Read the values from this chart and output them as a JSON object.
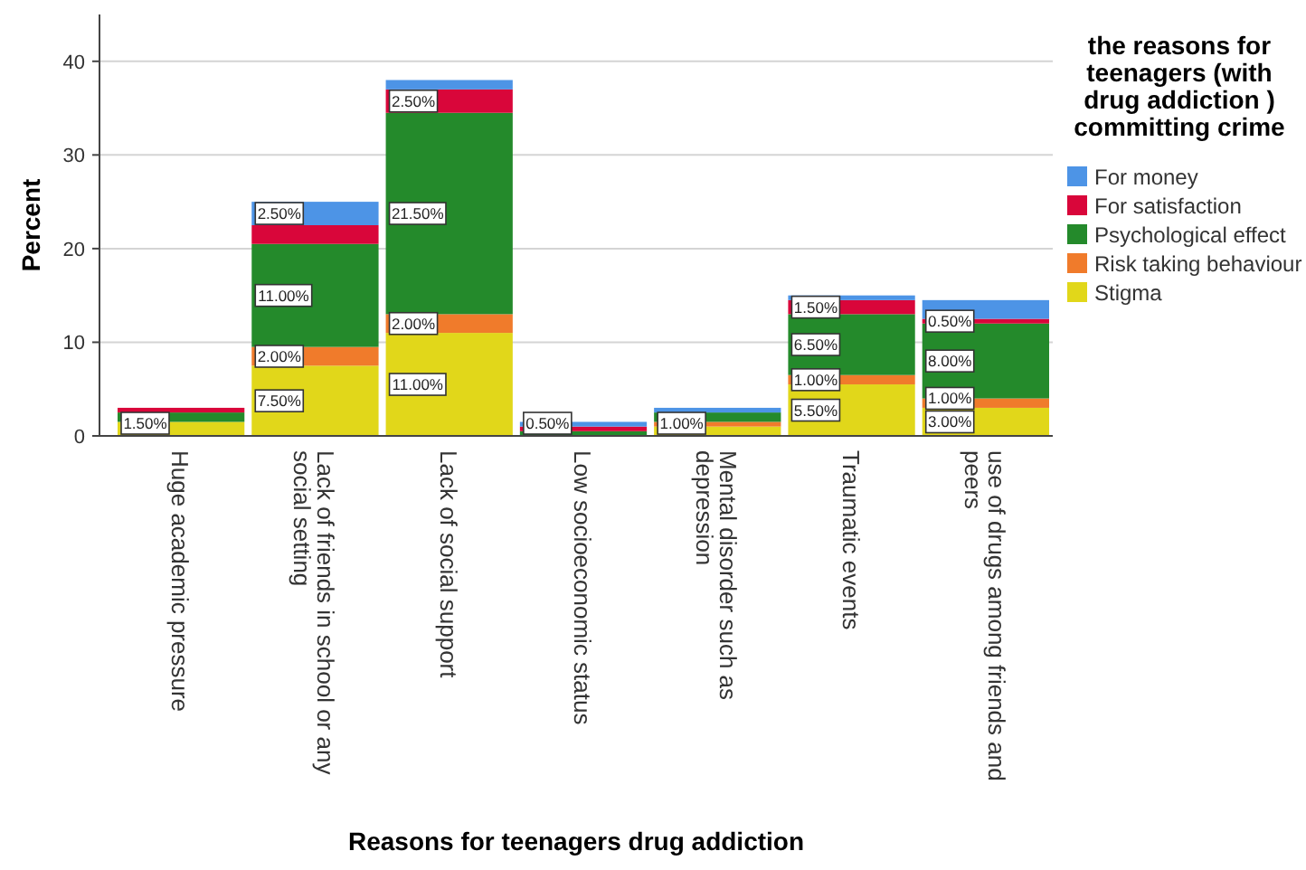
{
  "chart_data": {
    "type": "bar",
    "stacked": true,
    "xlabel": "Reasons for teenagers drug addiction",
    "ylabel": "Percent",
    "legend_title": "the reasons for teenagers  (with drug addiction ) committing crime",
    "legend": "right",
    "grid": "y",
    "ylim": [
      0,
      45
    ],
    "yticks": [
      0,
      10,
      20,
      30,
      40
    ],
    "categories": [
      "Huge academic pressure",
      "Lack of friends in school or any social setting",
      "Lack of social support",
      "Low socioeconomic status",
      "Mental disorder such as depression",
      "Traumatic events",
      "use of drugs among friends and peers"
    ],
    "series": [
      {
        "name": "Stigma",
        "color": "#e1d71a",
        "values": [
          1.5,
          7.5,
          11,
          0,
          1,
          5.5,
          3
        ],
        "value_labels": [
          "1.50%",
          "7.50%",
          "11.00%",
          null,
          "1.00%",
          "5.50%",
          "3.00%"
        ]
      },
      {
        "name": "Risk taking behaviour",
        "color": "#f07b2b",
        "values": [
          0,
          2,
          2,
          0,
          0.5,
          1,
          1
        ],
        "value_labels": [
          null,
          "2.00%",
          "2.00%",
          null,
          null,
          "1.00%",
          "1.00%"
        ]
      },
      {
        "name": "Psychological effect",
        "color": "#248a2b",
        "values": [
          1,
          11,
          21.5,
          0.5,
          1,
          6.5,
          8
        ],
        "value_labels": [
          null,
          "11.00%",
          "21.50%",
          null,
          null,
          "6.50%",
          "8.00%"
        ]
      },
      {
        "name": "For satisfaction",
        "color": "#d9063a",
        "values": [
          0.5,
          2,
          2.5,
          0.5,
          0,
          1.5,
          0.5
        ],
        "value_labels": [
          null,
          null,
          "2.50%",
          "0.50%",
          null,
          "1.50%",
          "0.50%"
        ]
      },
      {
        "name": "For money",
        "color": "#4d94e6",
        "values": [
          0,
          2.5,
          1,
          0.5,
          0.5,
          0.5,
          2
        ],
        "value_labels": [
          null,
          "2.50%",
          null,
          null,
          null,
          null,
          null
        ]
      }
    ]
  }
}
